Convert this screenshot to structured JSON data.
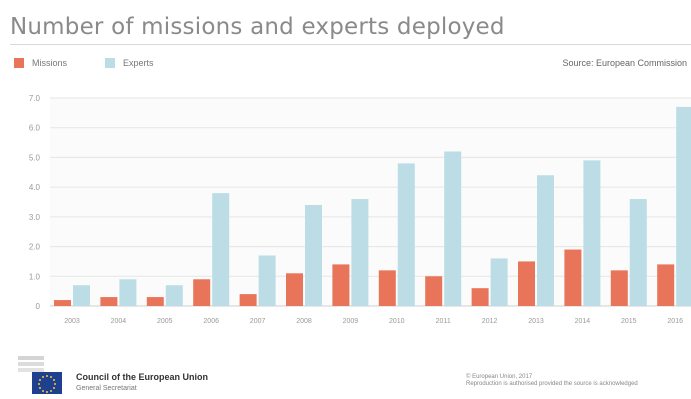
{
  "title": "Number of missions and experts deployed",
  "source": "Source: European Commission",
  "legend": {
    "missions": "Missions",
    "experts": "Experts"
  },
  "colors": {
    "missions": "#e8755a",
    "experts": "#bcdde6",
    "grid": "#e6e6e6",
    "axis_text": "#999999"
  },
  "footer": {
    "org": "Council of the European Union",
    "sub": "General Secretariat",
    "copy1": "© European Union, 2017",
    "copy2": "Reproduction is authorised provided the source is acknowledged"
  },
  "chart_data": {
    "type": "bar",
    "categories": [
      "2003",
      "2004",
      "2005",
      "2006",
      "2007",
      "2008",
      "2009",
      "2010",
      "2011",
      "2012",
      "2013",
      "2014",
      "2015",
      "2016"
    ],
    "series": [
      {
        "name": "Missions",
        "values": [
          0.2,
          0.3,
          0.3,
          0.9,
          0.4,
          1.1,
          1.4,
          1.2,
          1.0,
          0.6,
          1.5,
          1.9,
          1.2,
          1.4
        ]
      },
      {
        "name": "Experts",
        "values": [
          0.7,
          0.9,
          0.7,
          3.8,
          1.7,
          3.4,
          3.6,
          4.8,
          5.2,
          1.6,
          4.4,
          4.9,
          3.6,
          6.7
        ]
      }
    ],
    "yticks": [
      "0",
      "1.0",
      "2.0",
      "3.0",
      "4.0",
      "5.0",
      "6.0",
      "7.0"
    ],
    "ylim": [
      0,
      7.0
    ],
    "grid": true,
    "legend_position": "top-left"
  }
}
